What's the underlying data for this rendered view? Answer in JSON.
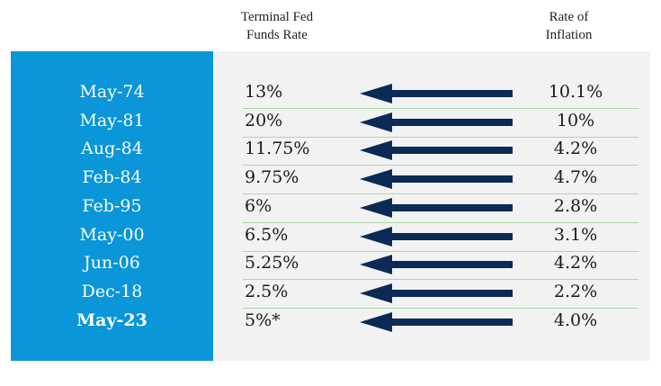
{
  "header": {
    "rate": "Terminal Fed Funds Rate",
    "inflation": "Rate of Inflation"
  },
  "table": {
    "rows": [
      [
        "May-74",
        "13%",
        "10.1%"
      ],
      [
        "May-81",
        "20%",
        "10%"
      ],
      [
        "Aug-84",
        "11.75%",
        "4.2%"
      ],
      [
        "Feb-84",
        "9.75%",
        "4.7%"
      ],
      [
        "Feb-95",
        "6%",
        "2.8%"
      ],
      [
        "May-00",
        "6.5%",
        "3.1%"
      ],
      [
        "Jun-06",
        "5.25%",
        "4.2%"
      ],
      [
        "Dec-18",
        "2.5%",
        "2.2%"
      ],
      [
        "May-23",
        "5%*",
        "4.0%"
      ]
    ]
  }
}
